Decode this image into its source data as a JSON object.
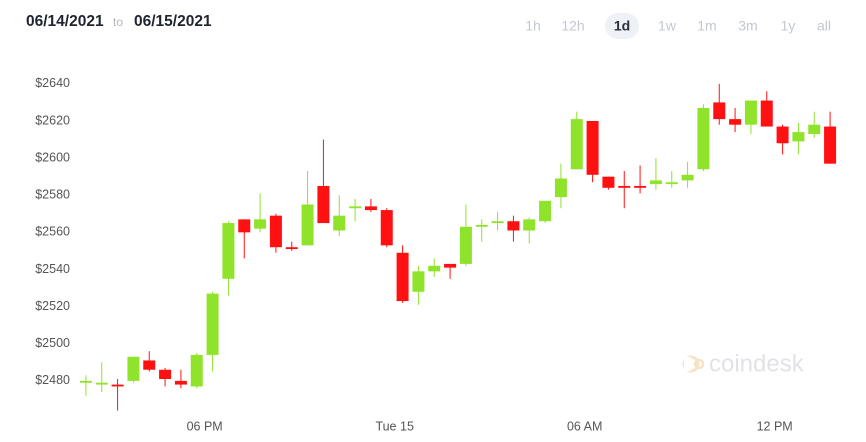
{
  "header": {
    "start": "06/14/2021",
    "separator": "to",
    "end": "06/15/2021"
  },
  "range_buttons": {
    "options": [
      "1h",
      "12h",
      "1d",
      "1w",
      "1m",
      "3m",
      "1y",
      "all"
    ],
    "selected": "1d"
  },
  "watermark": "coindesk",
  "chart_data": {
    "type": "candlestick",
    "x": [
      14.25,
      14.75,
      15.25,
      15.75,
      16.25,
      16.75,
      17.25,
      17.75,
      18.25,
      18.75,
      19.25,
      19.75,
      20.25,
      20.75,
      21.25,
      21.75,
      22.25,
      22.75,
      23.25,
      23.75,
      24.25,
      24.75,
      25.25,
      25.75,
      26.25,
      26.75,
      27.25,
      27.75,
      28.25,
      28.75,
      29.25,
      29.75,
      30.25,
      30.75,
      31.25,
      31.75,
      32.25,
      32.75,
      33.25,
      33.75,
      34.25,
      34.75,
      35.25,
      35.75,
      36.25,
      36.75,
      37.25,
      37.75
    ],
    "open": [
      2479,
      2478,
      2478,
      2480,
      2491,
      2486,
      2480,
      2477,
      2494,
      2535,
      2567,
      2562,
      2569,
      2552,
      2553,
      2585,
      2561,
      2573,
      2574,
      2572,
      2549,
      2528,
      2539,
      2543,
      2543,
      2563,
      2565,
      2566,
      2561,
      2566,
      2579,
      2594,
      2620,
      2590,
      2585,
      2585,
      2586,
      2586,
      2588,
      2594,
      2630,
      2621,
      2618,
      2631,
      2617,
      2609,
      2613,
      2617
    ],
    "high": [
      2483,
      2490,
      2481,
      2493,
      2496,
      2487,
      2486,
      2495,
      2528,
      2566,
      2567,
      2581,
      2570,
      2555,
      2593,
      2610,
      2580,
      2578,
      2578,
      2573,
      2553,
      2542,
      2546,
      2543,
      2575,
      2567,
      2571,
      2569,
      2568,
      2577,
      2597,
      2625,
      2620,
      2590,
      2593,
      2596,
      2600,
      2593,
      2598,
      2629,
      2640,
      2627,
      2631,
      2636,
      2618,
      2619,
      2625,
      2625
    ],
    "low": [
      2472,
      2474,
      2464,
      2479,
      2485,
      2477,
      2476,
      2476,
      2485,
      2526,
      2546,
      2560,
      2549,
      2550,
      2553,
      2565,
      2558,
      2566,
      2571,
      2552,
      2522,
      2521,
      2536,
      2535,
      2542,
      2555,
      2561,
      2555,
      2554,
      2565,
      2573,
      2594,
      2587,
      2583,
      2573,
      2581,
      2583,
      2584,
      2584,
      2593,
      2618,
      2614,
      2613,
      2617,
      2602,
      2602,
      2611,
      2597
    ],
    "close": [
      2480,
      2479,
      2477,
      2493,
      2486,
      2481,
      2478,
      2494,
      2527,
      2565,
      2560,
      2567,
      2552,
      2551,
      2575,
      2565,
      2569,
      2574,
      2572,
      2553,
      2523,
      2539,
      2542,
      2541,
      2563,
      2564,
      2566,
      2561,
      2567,
      2577,
      2589,
      2621,
      2591,
      2584,
      2584,
      2584,
      2588,
      2587,
      2591,
      2627,
      2621,
      2618,
      2631,
      2617,
      2608,
      2614,
      2618,
      2597
    ],
    "up_color": "#8fe32b",
    "down_color": "#ff1111",
    "xlim": [
      14,
      38
    ],
    "xticks": [
      {
        "value": 18,
        "label": "06 PM"
      },
      {
        "value": 24,
        "label": "Tue 15"
      },
      {
        "value": 30,
        "label": "06 AM"
      },
      {
        "value": 36,
        "label": "12 PM"
      }
    ],
    "ylim": [
      2460,
      2655
    ],
    "yticks": [
      {
        "value": 2480,
        "label": "$2480"
      },
      {
        "value": 2500,
        "label": "$2500"
      },
      {
        "value": 2520,
        "label": "$2520"
      },
      {
        "value": 2540,
        "label": "$2540"
      },
      {
        "value": 2560,
        "label": "$2560"
      },
      {
        "value": 2580,
        "label": "$2580"
      },
      {
        "value": 2600,
        "label": "$2600"
      },
      {
        "value": 2620,
        "label": "$2620"
      },
      {
        "value": 2640,
        "label": "$2640"
      }
    ],
    "grid": false
  }
}
